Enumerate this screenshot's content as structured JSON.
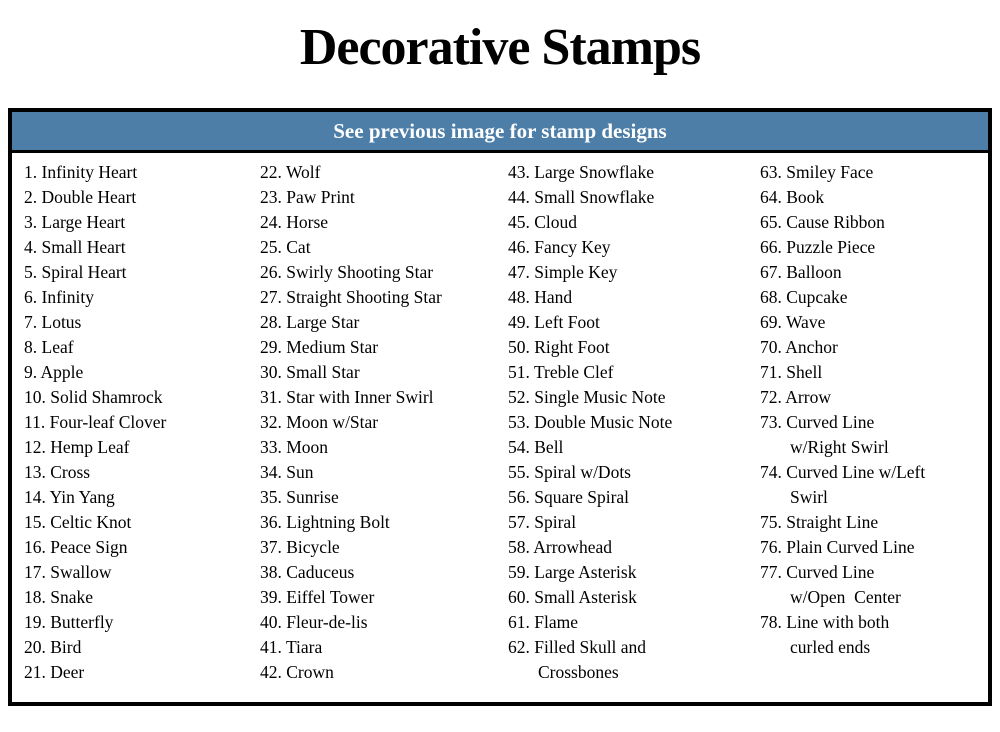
{
  "page": {
    "title": "Decorative Stamps",
    "table_header": "See previous image for stamp designs"
  },
  "colors": {
    "header_bg": "#4d7ea8",
    "header_text": "#ffffff",
    "border": "#000000",
    "body_text": "#000000"
  },
  "stamps": {
    "columns": [
      [
        {
          "n": 1,
          "lines": [
            "Infinity Heart"
          ]
        },
        {
          "n": 2,
          "lines": [
            "Double Heart"
          ]
        },
        {
          "n": 3,
          "lines": [
            "Large Heart"
          ]
        },
        {
          "n": 4,
          "lines": [
            "Small Heart"
          ]
        },
        {
          "n": 5,
          "lines": [
            "Spiral Heart"
          ]
        },
        {
          "n": 6,
          "lines": [
            "Infinity"
          ]
        },
        {
          "n": 7,
          "lines": [
            "Lotus"
          ]
        },
        {
          "n": 8,
          "lines": [
            "Leaf"
          ]
        },
        {
          "n": 9,
          "lines": [
            "Apple"
          ]
        },
        {
          "n": 10,
          "lines": [
            "Solid Shamrock"
          ]
        },
        {
          "n": 11,
          "lines": [
            "Four-leaf Clover"
          ]
        },
        {
          "n": 12,
          "lines": [
            "Hemp Leaf"
          ]
        },
        {
          "n": 13,
          "lines": [
            "Cross"
          ]
        },
        {
          "n": 14,
          "lines": [
            "Yin Yang"
          ]
        },
        {
          "n": 15,
          "lines": [
            "Celtic Knot"
          ]
        },
        {
          "n": 16,
          "lines": [
            "Peace Sign"
          ]
        },
        {
          "n": 17,
          "lines": [
            "Swallow"
          ]
        },
        {
          "n": 18,
          "lines": [
            "Snake"
          ]
        },
        {
          "n": 19,
          "lines": [
            "Butterfly"
          ]
        },
        {
          "n": 20,
          "lines": [
            "Bird"
          ]
        },
        {
          "n": 21,
          "lines": [
            "Deer"
          ]
        }
      ],
      [
        {
          "n": 22,
          "lines": [
            "Wolf"
          ]
        },
        {
          "n": 23,
          "lines": [
            "Paw Print"
          ]
        },
        {
          "n": 24,
          "lines": [
            "Horse"
          ]
        },
        {
          "n": 25,
          "lines": [
            "Cat"
          ]
        },
        {
          "n": 26,
          "lines": [
            "Swirly Shooting Star"
          ]
        },
        {
          "n": 27,
          "lines": [
            "Straight Shooting Star"
          ]
        },
        {
          "n": 28,
          "lines": [
            "Large Star"
          ]
        },
        {
          "n": 29,
          "lines": [
            "Medium Star"
          ]
        },
        {
          "n": 30,
          "lines": [
            "Small Star"
          ]
        },
        {
          "n": 31,
          "lines": [
            "Star with Inner Swirl"
          ]
        },
        {
          "n": 32,
          "lines": [
            "Moon w/Star"
          ]
        },
        {
          "n": 33,
          "lines": [
            "Moon"
          ]
        },
        {
          "n": 34,
          "lines": [
            "Sun"
          ]
        },
        {
          "n": 35,
          "lines": [
            "Sunrise"
          ]
        },
        {
          "n": 36,
          "lines": [
            "Lightning Bolt"
          ]
        },
        {
          "n": 37,
          "lines": [
            "Bicycle"
          ]
        },
        {
          "n": 38,
          "lines": [
            "Caduceus"
          ]
        },
        {
          "n": 39,
          "lines": [
            "Eiffel Tower"
          ]
        },
        {
          "n": 40,
          "lines": [
            "Fleur-de-lis"
          ]
        },
        {
          "n": 41,
          "lines": [
            "Tiara"
          ]
        },
        {
          "n": 42,
          "lines": [
            "Crown"
          ]
        }
      ],
      [
        {
          "n": 43,
          "lines": [
            "Large Snowflake"
          ]
        },
        {
          "n": 44,
          "lines": [
            "Small Snowflake"
          ]
        },
        {
          "n": 45,
          "lines": [
            "Cloud"
          ]
        },
        {
          "n": 46,
          "lines": [
            "Fancy Key"
          ]
        },
        {
          "n": 47,
          "lines": [
            "Simple Key"
          ]
        },
        {
          "n": 48,
          "lines": [
            "Hand"
          ]
        },
        {
          "n": 49,
          "lines": [
            "Left Foot"
          ]
        },
        {
          "n": 50,
          "lines": [
            "Right Foot"
          ]
        },
        {
          "n": 51,
          "lines": [
            "Treble Clef"
          ]
        },
        {
          "n": 52,
          "lines": [
            "Single Music Note"
          ]
        },
        {
          "n": 53,
          "lines": [
            "Double Music Note"
          ]
        },
        {
          "n": 54,
          "lines": [
            "Bell"
          ]
        },
        {
          "n": 55,
          "lines": [
            "Spiral w/Dots"
          ]
        },
        {
          "n": 56,
          "lines": [
            "Square Spiral"
          ]
        },
        {
          "n": 57,
          "lines": [
            "Spiral"
          ]
        },
        {
          "n": 58,
          "lines": [
            "Arrowhead"
          ]
        },
        {
          "n": 59,
          "lines": [
            "Large Asterisk"
          ]
        },
        {
          "n": 60,
          "lines": [
            "Small Asterisk"
          ]
        },
        {
          "n": 61,
          "lines": [
            "Flame"
          ]
        },
        {
          "n": 62,
          "lines": [
            "Filled Skull and",
            "Crossbones"
          ]
        }
      ],
      [
        {
          "n": 63,
          "lines": [
            "Smiley Face"
          ]
        },
        {
          "n": 64,
          "lines": [
            "Book"
          ]
        },
        {
          "n": 65,
          "lines": [
            "Cause Ribbon"
          ]
        },
        {
          "n": 66,
          "lines": [
            "Puzzle Piece"
          ]
        },
        {
          "n": 67,
          "lines": [
            "Balloon"
          ]
        },
        {
          "n": 68,
          "lines": [
            "Cupcake"
          ]
        },
        {
          "n": 69,
          "lines": [
            "Wave"
          ]
        },
        {
          "n": 70,
          "lines": [
            "Anchor"
          ]
        },
        {
          "n": 71,
          "lines": [
            "Shell"
          ]
        },
        {
          "n": 72,
          "lines": [
            "Arrow"
          ]
        },
        {
          "n": 73,
          "lines": [
            "Curved Line",
            "w/Right Swirl"
          ]
        },
        {
          "n": 74,
          "lines": [
            "Curved Line w/Left",
            "Swirl"
          ]
        },
        {
          "n": 75,
          "lines": [
            "Straight Line"
          ]
        },
        {
          "n": 76,
          "lines": [
            "Plain Curved Line"
          ]
        },
        {
          "n": 77,
          "lines": [
            "Curved Line",
            "w/Open  Center"
          ]
        },
        {
          "n": 78,
          "lines": [
            "Line with both",
            "curled ends"
          ]
        }
      ]
    ]
  }
}
